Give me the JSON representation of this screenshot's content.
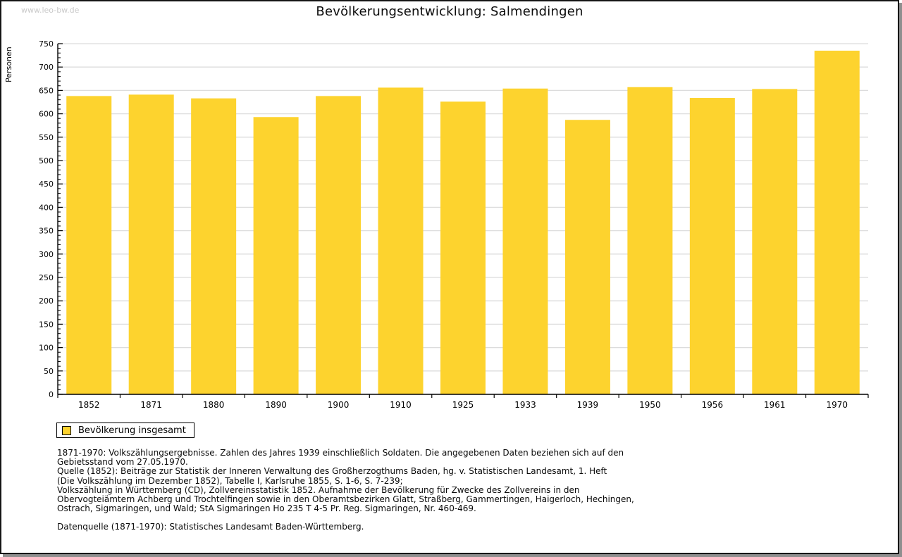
{
  "watermark": "www.leo-bw.de",
  "header": {
    "title": "Bevölkerungsentwicklung: Salmendingen"
  },
  "chart_data": {
    "type": "bar",
    "title": "Bevölkerungsentwicklung: Salmendingen",
    "xlabel": "",
    "ylabel": "Personen",
    "ylim": [
      0,
      750
    ],
    "ytick_step": 50,
    "yminor_step": 10,
    "grid": true,
    "legend_position": "bottom-left",
    "categories": [
      "1852",
      "1871",
      "1880",
      "1890",
      "1900",
      "1910",
      "1925",
      "1933",
      "1939",
      "1950",
      "1956",
      "1961",
      "1970"
    ],
    "series": [
      {
        "name": "Bevölkerung insgesamt",
        "values": [
          638,
          641,
          633,
          593,
          638,
          656,
          626,
          654,
          587,
          657,
          634,
          653,
          735
        ]
      }
    ],
    "colors": {
      "bar": "#FDD32E",
      "grid": "#DCDCDC",
      "axis": "#000000",
      "text": "#000000"
    }
  },
  "legend": {
    "label": "Bevölkerung insgesamt",
    "swatch_color": "#FDD32E"
  },
  "footnotes": [
    "1871-1970: Volkszählungsergebnisse. Zahlen des Jahres 1939 einschließlich Soldaten. Die angegebenen Daten beziehen sich auf den",
    "Gebietsstand vom 27.05.1970.",
    "Quelle (1852): Beiträge zur Statistik der Inneren Verwaltung des Großherzogthums Baden, hg. v. Statistischen Landesamt, 1. Heft",
    "(Die Volkszählung im Dezember 1852), Tabelle I, Karlsruhe 1855, S. 1-6, S. 7-239;",
    "Volkszählung in Württemberg (CD), Zollvereinsstatistik 1852. Aufnahme der Bevölkerung für Zwecke des Zollvereins in den",
    "Obervogteiämtern Achberg und Trochtelfingen sowie in den Oberamtsbezirken Glatt, Straßberg, Gammertingen, Haigerloch, Hechingen,",
    "Ostrach, Sigmaringen, und Wald; StA Sigmaringen Ho 235 T 4-5 Pr. Reg. Sigmaringen, Nr. 460-469."
  ],
  "datasource_line": "Datenquelle (1871-1970): Statistisches Landesamt Baden-Württemberg."
}
